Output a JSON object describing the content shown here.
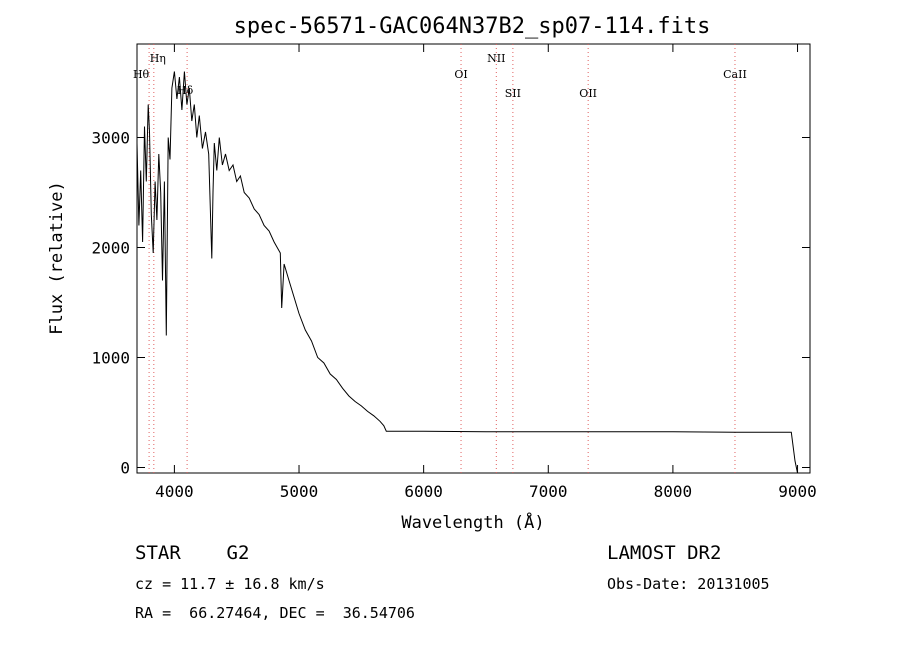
{
  "chart_data": {
    "type": "line",
    "title": "spec-56571-GAC064N37B2_sp07-114.fits",
    "xlabel": "Wavelength (Å)",
    "ylabel": "Flux (relative)",
    "xlim": [
      3700,
      9100
    ],
    "ylim": [
      -50,
      3850
    ],
    "xticks": [
      4000,
      5000,
      6000,
      7000,
      8000,
      9000
    ],
    "yticks": [
      0,
      1000,
      2000,
      3000
    ],
    "grid": false,
    "series": [
      {
        "x": [
          3700,
          3715,
          3730,
          3745,
          3760,
          3775,
          3790,
          3800,
          3815,
          3830,
          3845,
          3860,
          3875,
          3890,
          3905,
          3920,
          3935,
          3950,
          3965,
          3980,
          4000,
          4020,
          4040,
          4060,
          4080,
          4100,
          4120,
          4140,
          4160,
          4180,
          4200,
          4225,
          4250,
          4275,
          4300,
          4310,
          4320,
          4340,
          4360,
          4385,
          4410,
          4440,
          4470,
          4500,
          4530,
          4560,
          4600,
          4640,
          4680,
          4720,
          4760,
          4800,
          4850,
          4861,
          4880,
          4920,
          4960,
          5000,
          5050,
          5100,
          5150,
          5200,
          5250,
          5300,
          5350,
          5400,
          5450,
          5500,
          5550,
          5600,
          5650,
          5680,
          5700,
          6000,
          6500,
          7000,
          7500,
          8000,
          8500,
          8950,
          8980,
          9000
        ],
        "y": [
          2950,
          2200,
          2700,
          2050,
          3100,
          2600,
          3300,
          3050,
          2300,
          1950,
          2600,
          2250,
          2850,
          2500,
          1700,
          2600,
          1200,
          3000,
          2800,
          3450,
          3600,
          3350,
          3550,
          3250,
          3600,
          3300,
          3450,
          3150,
          3300,
          3000,
          3200,
          2900,
          3050,
          2850,
          1900,
          2500,
          2950,
          2700,
          3000,
          2750,
          2850,
          2700,
          2750,
          2600,
          2650,
          2500,
          2450,
          2350,
          2300,
          2200,
          2150,
          2050,
          1950,
          1450,
          1850,
          1700,
          1550,
          1400,
          1250,
          1150,
          1000,
          950,
          850,
          800,
          720,
          650,
          600,
          560,
          510,
          470,
          420,
          380,
          330,
          330,
          325,
          325,
          325,
          325,
          320,
          320,
          60,
          -50
        ]
      }
    ],
    "lines": [
      {
        "label": "Hη",
        "x": 3835
      },
      {
        "label": "Hθ",
        "x": 3797
      },
      {
        "label": "Hδ",
        "x": 4102
      },
      {
        "label": "OI",
        "x": 6300
      },
      {
        "label": "NII",
        "x": 6583
      },
      {
        "label": "SII",
        "x": 6716
      },
      {
        "label": "OII",
        "x": 7320
      },
      {
        "label": "CaII",
        "x": 8498
      }
    ]
  },
  "info": {
    "object": "STAR    G2",
    "cz": "cz = 11.7 ± 16.8 km/s",
    "radec": "RA =  66.27464, DEC =  36.54706",
    "survey": "LAMOST DR2",
    "obsdate": "Obs-Date: 20131005"
  }
}
